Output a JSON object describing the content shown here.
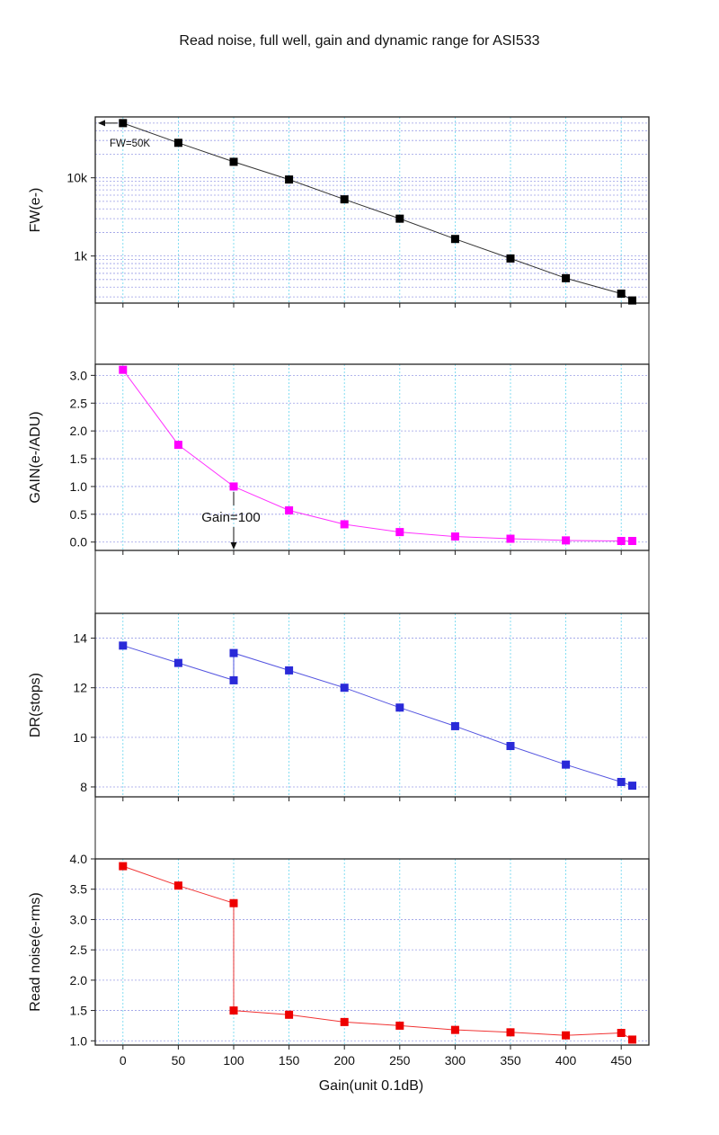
{
  "figure_title": "Read noise, full well, gain and dynamic range for ASI533",
  "x_axis": {
    "label": "Gain(unit 0.1dB)",
    "range": [
      -25,
      475
    ],
    "ticks": [
      0,
      50,
      100,
      150,
      200,
      250,
      300,
      350,
      400,
      450
    ]
  },
  "chart_data": [
    {
      "id": "fw",
      "type": "scatter",
      "title": "",
      "xlabel": "",
      "ylabel": "FW(e-)",
      "yscale": "log",
      "ylim": [
        250,
        60000
      ],
      "yticks": [
        {
          "value": 1000,
          "label": "1k"
        },
        {
          "value": 10000,
          "label": "10k"
        }
      ],
      "grid": true,
      "color": "#000000",
      "x": [
        0,
        50,
        100,
        150,
        200,
        250,
        300,
        350,
        400,
        450,
        460
      ],
      "values": [
        50000,
        28000,
        16000,
        9500,
        5300,
        3000,
        1650,
        930,
        520,
        330,
        270
      ],
      "annotations": [
        {
          "text": "FW=50K",
          "x": 0,
          "y": 50000
        }
      ]
    },
    {
      "id": "gain",
      "type": "scatter",
      "title": "",
      "xlabel": "",
      "ylabel": "GAIN(e-/ADU)",
      "ylim": [
        -0.15,
        3.2
      ],
      "yticks": [
        {
          "value": 0.0,
          "label": "0.0"
        },
        {
          "value": 0.5,
          "label": "0.5"
        },
        {
          "value": 1.0,
          "label": "1.0"
        },
        {
          "value": 1.5,
          "label": "1.5"
        },
        {
          "value": 2.0,
          "label": "2.0"
        },
        {
          "value": 2.5,
          "label": "2.5"
        },
        {
          "value": 3.0,
          "label": "3.0"
        }
      ],
      "grid": true,
      "color": "#ff00ff",
      "x": [
        0,
        50,
        100,
        150,
        200,
        250,
        300,
        350,
        400,
        450,
        460
      ],
      "values": [
        3.1,
        1.75,
        1.0,
        0.57,
        0.32,
        0.18,
        0.1,
        0.06,
        0.03,
        0.02,
        0.02
      ],
      "annotations": [
        {
          "text": "Gain=100",
          "x": 100,
          "y": 1.0
        }
      ]
    },
    {
      "id": "dr",
      "type": "scatter",
      "title": "",
      "xlabel": "",
      "ylabel": "DR(stops)",
      "ylim": [
        7.6,
        15.0
      ],
      "yticks": [
        {
          "value": 8,
          "label": "8"
        },
        {
          "value": 10,
          "label": "10"
        },
        {
          "value": 12,
          "label": "12"
        },
        {
          "value": 14,
          "label": "14"
        }
      ],
      "grid": true,
      "color": "#2a2ad8",
      "x": [
        0,
        50,
        100,
        100,
        150,
        200,
        250,
        300,
        350,
        400,
        450,
        460
      ],
      "values": [
        13.7,
        13.0,
        12.3,
        13.4,
        12.7,
        12.0,
        11.2,
        10.45,
        9.65,
        8.9,
        8.2,
        8.05
      ]
    },
    {
      "id": "rn",
      "type": "scatter",
      "title": "",
      "xlabel": "Gain(unit 0.1dB)",
      "ylabel": "Read noise(e-rms)",
      "ylim": [
        0.93,
        4.0
      ],
      "yticks": [
        {
          "value": 1.0,
          "label": "1.0"
        },
        {
          "value": 1.5,
          "label": "1.5"
        },
        {
          "value": 2.0,
          "label": "2.0"
        },
        {
          "value": 2.5,
          "label": "2.5"
        },
        {
          "value": 3.0,
          "label": "3.0"
        },
        {
          "value": 3.5,
          "label": "3.5"
        },
        {
          "value": 4.0,
          "label": "4.0"
        }
      ],
      "grid": true,
      "color": "#ee0000",
      "x": [
        0,
        50,
        100,
        100,
        150,
        200,
        250,
        300,
        350,
        400,
        450,
        460
      ],
      "values": [
        3.88,
        3.56,
        3.27,
        1.5,
        1.43,
        1.31,
        1.25,
        1.18,
        1.14,
        1.09,
        1.13,
        1.02
      ]
    }
  ]
}
